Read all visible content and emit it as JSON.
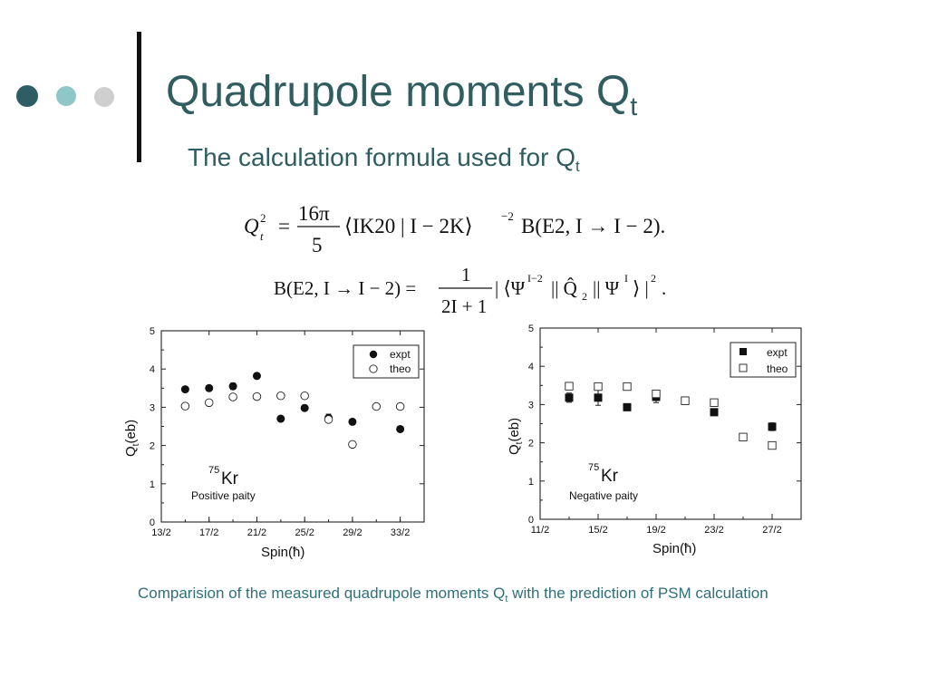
{
  "slide": {
    "title_main": "Quadrupole moments Q",
    "title_sub": "t",
    "subtitle_main": "The calculation formula used for Q",
    "subtitle_sub": "t",
    "bullet_colors": [
      "#2e5e63",
      "#8fc7c8",
      "#cfcfcf"
    ],
    "caption_main": "Comparision of the measured quadrupole moments Q",
    "caption_sub": "t",
    "caption_rest": "  with the prediction of PSM calculation"
  },
  "formulas": {
    "f1_lhs": "Q",
    "f1_lhs_sup": "2",
    "f1_lhs_sub": "t",
    "f1_eq": "=",
    "f1_num": "16π",
    "f1_den": "5",
    "f1_rhs": "⟨IK20 | I − 2K⟩",
    "f1_rhs_sup": "−2",
    "f1_rhs_end": "B(E2, I → I − 2).",
    "f2_lhs": "B(E2, I → I − 2) =",
    "f2_num": "1",
    "f2_den": "2I + 1",
    "f2_rhs1": "| ⟨Ψ",
    "f2_rhs1_sup": "I−2",
    "f2_rhs2": "|| Q̂",
    "f2_rhs2_sub": "2",
    "f2_rhs3": "|| Ψ",
    "f2_rhs3_sup": "I",
    "f2_rhs4": "⟩ |",
    "f2_rhs4_sup": "2",
    "f2_rhs_end": "."
  },
  "chart_data": [
    {
      "type": "scatter",
      "nucleus_mass": "75",
      "nucleus_symbol": "Kr",
      "annotation": "Positive paity",
      "xlabel": "Spin(ħ)",
      "ylabel_main": "Q",
      "ylabel_sub": "t",
      "ylabel_unit": "(eb)",
      "x_tick_labels": [
        "13/2",
        "17/2",
        "21/2",
        "25/2",
        "29/2",
        "33/2"
      ],
      "x_tick_values": [
        6.5,
        8.5,
        10.5,
        12.5,
        14.5,
        16.5
      ],
      "xlim": [
        6.5,
        17.5
      ],
      "ylim": [
        0,
        5
      ],
      "y_tick_labels": [
        "0",
        "1",
        "2",
        "3",
        "4",
        "5"
      ],
      "legend_position": "top-right",
      "series": [
        {
          "name": "expt",
          "marker": "filled-circle",
          "x": [
            7.5,
            8.5,
            9.5,
            10.5,
            11.5,
            12.5,
            13.5,
            14.5,
            16.5
          ],
          "y": [
            3.47,
            3.5,
            3.55,
            3.82,
            2.7,
            2.98,
            2.72,
            2.62,
            2.43
          ],
          "err": [
            0,
            0,
            0.08,
            0,
            0,
            0,
            0.1,
            0,
            0
          ]
        },
        {
          "name": "theo",
          "marker": "open-circle",
          "x": [
            7.5,
            8.5,
            9.5,
            10.5,
            11.5,
            12.5,
            13.5,
            14.5,
            15.5,
            16.5
          ],
          "y": [
            3.03,
            3.12,
            3.27,
            3.28,
            3.3,
            3.3,
            2.68,
            2.03,
            3.02,
            3.02
          ]
        }
      ]
    },
    {
      "type": "scatter",
      "nucleus_mass": "75",
      "nucleus_symbol": "Kr",
      "annotation": "Negative paity",
      "xlabel": "Spin(ħ)",
      "ylabel_main": "Q",
      "ylabel_sub": "t",
      "ylabel_unit": "(eb)",
      "x_tick_labels": [
        "11/2",
        "15/2",
        "19/2",
        "23/2",
        "27/2"
      ],
      "x_tick_values": [
        5.5,
        7.5,
        9.5,
        11.5,
        13.5
      ],
      "xlim": [
        5.5,
        14.5
      ],
      "ylim": [
        0,
        5
      ],
      "y_tick_labels": [
        "0",
        "1",
        "2",
        "3",
        "4",
        "5"
      ],
      "legend_position": "top-right",
      "series": [
        {
          "name": "expt",
          "marker": "filled-square",
          "x": [
            6.5,
            7.5,
            8.5,
            9.5,
            10.5,
            11.5,
            13.5
          ],
          "y": [
            3.18,
            3.18,
            2.93,
            3.2,
            3.1,
            2.8,
            2.42
          ],
          "err": [
            0.12,
            0.2,
            0,
            0.15,
            0.08,
            0.06,
            0.1
          ]
        },
        {
          "name": "theo",
          "marker": "open-square",
          "x": [
            6.5,
            7.5,
            8.5,
            9.5,
            10.5,
            11.5,
            12.5,
            13.5
          ],
          "y": [
            3.48,
            3.47,
            3.47,
            3.28,
            3.1,
            3.05,
            2.15,
            1.93
          ]
        }
      ]
    }
  ]
}
